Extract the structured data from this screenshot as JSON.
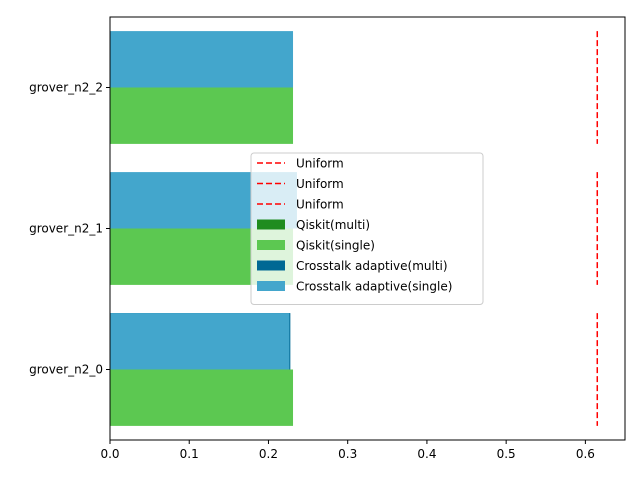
{
  "chart_data": {
    "type": "bar",
    "orientation": "horizontal",
    "categories": [
      "grover_n2_0",
      "grover_n2_1",
      "grover_n2_2"
    ],
    "series": [
      {
        "name": "Qiskit(multi)",
        "values": [
          0.0,
          0.0,
          0.0
        ],
        "color": "#1f8c1f"
      },
      {
        "name": "Qiskit(single)",
        "values": [
          0.231,
          0.231,
          0.231
        ],
        "color": "#5cc851"
      },
      {
        "name": "Crosstalk adaptive(multi)",
        "values": [
          0.227,
          0.0,
          0.0
        ],
        "color": "#006894"
      },
      {
        "name": "Crosstalk adaptive(single)",
        "values": [
          0.227,
          0.236,
          0.231
        ],
        "color": "#43a6cc"
      }
    ],
    "reference_lines": [
      {
        "name": "Uniform",
        "value": 0.615,
        "color": "#ff0000",
        "style": "dashed"
      },
      {
        "name": "Uniform",
        "value": 0.615,
        "color": "#ff0000",
        "style": "dashed"
      },
      {
        "name": "Uniform",
        "value": 0.615,
        "color": "#ff0000",
        "style": "dashed"
      }
    ],
    "xlim": [
      0,
      0.65
    ],
    "xticks": [
      "0.0",
      "0.1",
      "0.2",
      "0.3",
      "0.4",
      "0.5",
      "0.6"
    ],
    "xtick_values": [
      0,
      0.1,
      0.2,
      0.3,
      0.4,
      0.5,
      0.6
    ],
    "title": "",
    "xlabel": "",
    "ylabel": "",
    "grid": false,
    "legend": {
      "placement": "center-right",
      "entries": [
        {
          "label": "Uniform",
          "kind": "line",
          "color": "#ff0000"
        },
        {
          "label": "Uniform",
          "kind": "line",
          "color": "#ff0000"
        },
        {
          "label": "Uniform",
          "kind": "line",
          "color": "#ff0000"
        },
        {
          "label": "Qiskit(multi)",
          "kind": "patch",
          "color": "#1f8c1f"
        },
        {
          "label": "Qiskit(single)",
          "kind": "patch",
          "color": "#5cc851"
        },
        {
          "label": "Crosstalk adaptive(multi)",
          "kind": "patch",
          "color": "#006894"
        },
        {
          "label": "Crosstalk adaptive(single)",
          "kind": "patch",
          "color": "#43a6cc"
        }
      ]
    }
  }
}
